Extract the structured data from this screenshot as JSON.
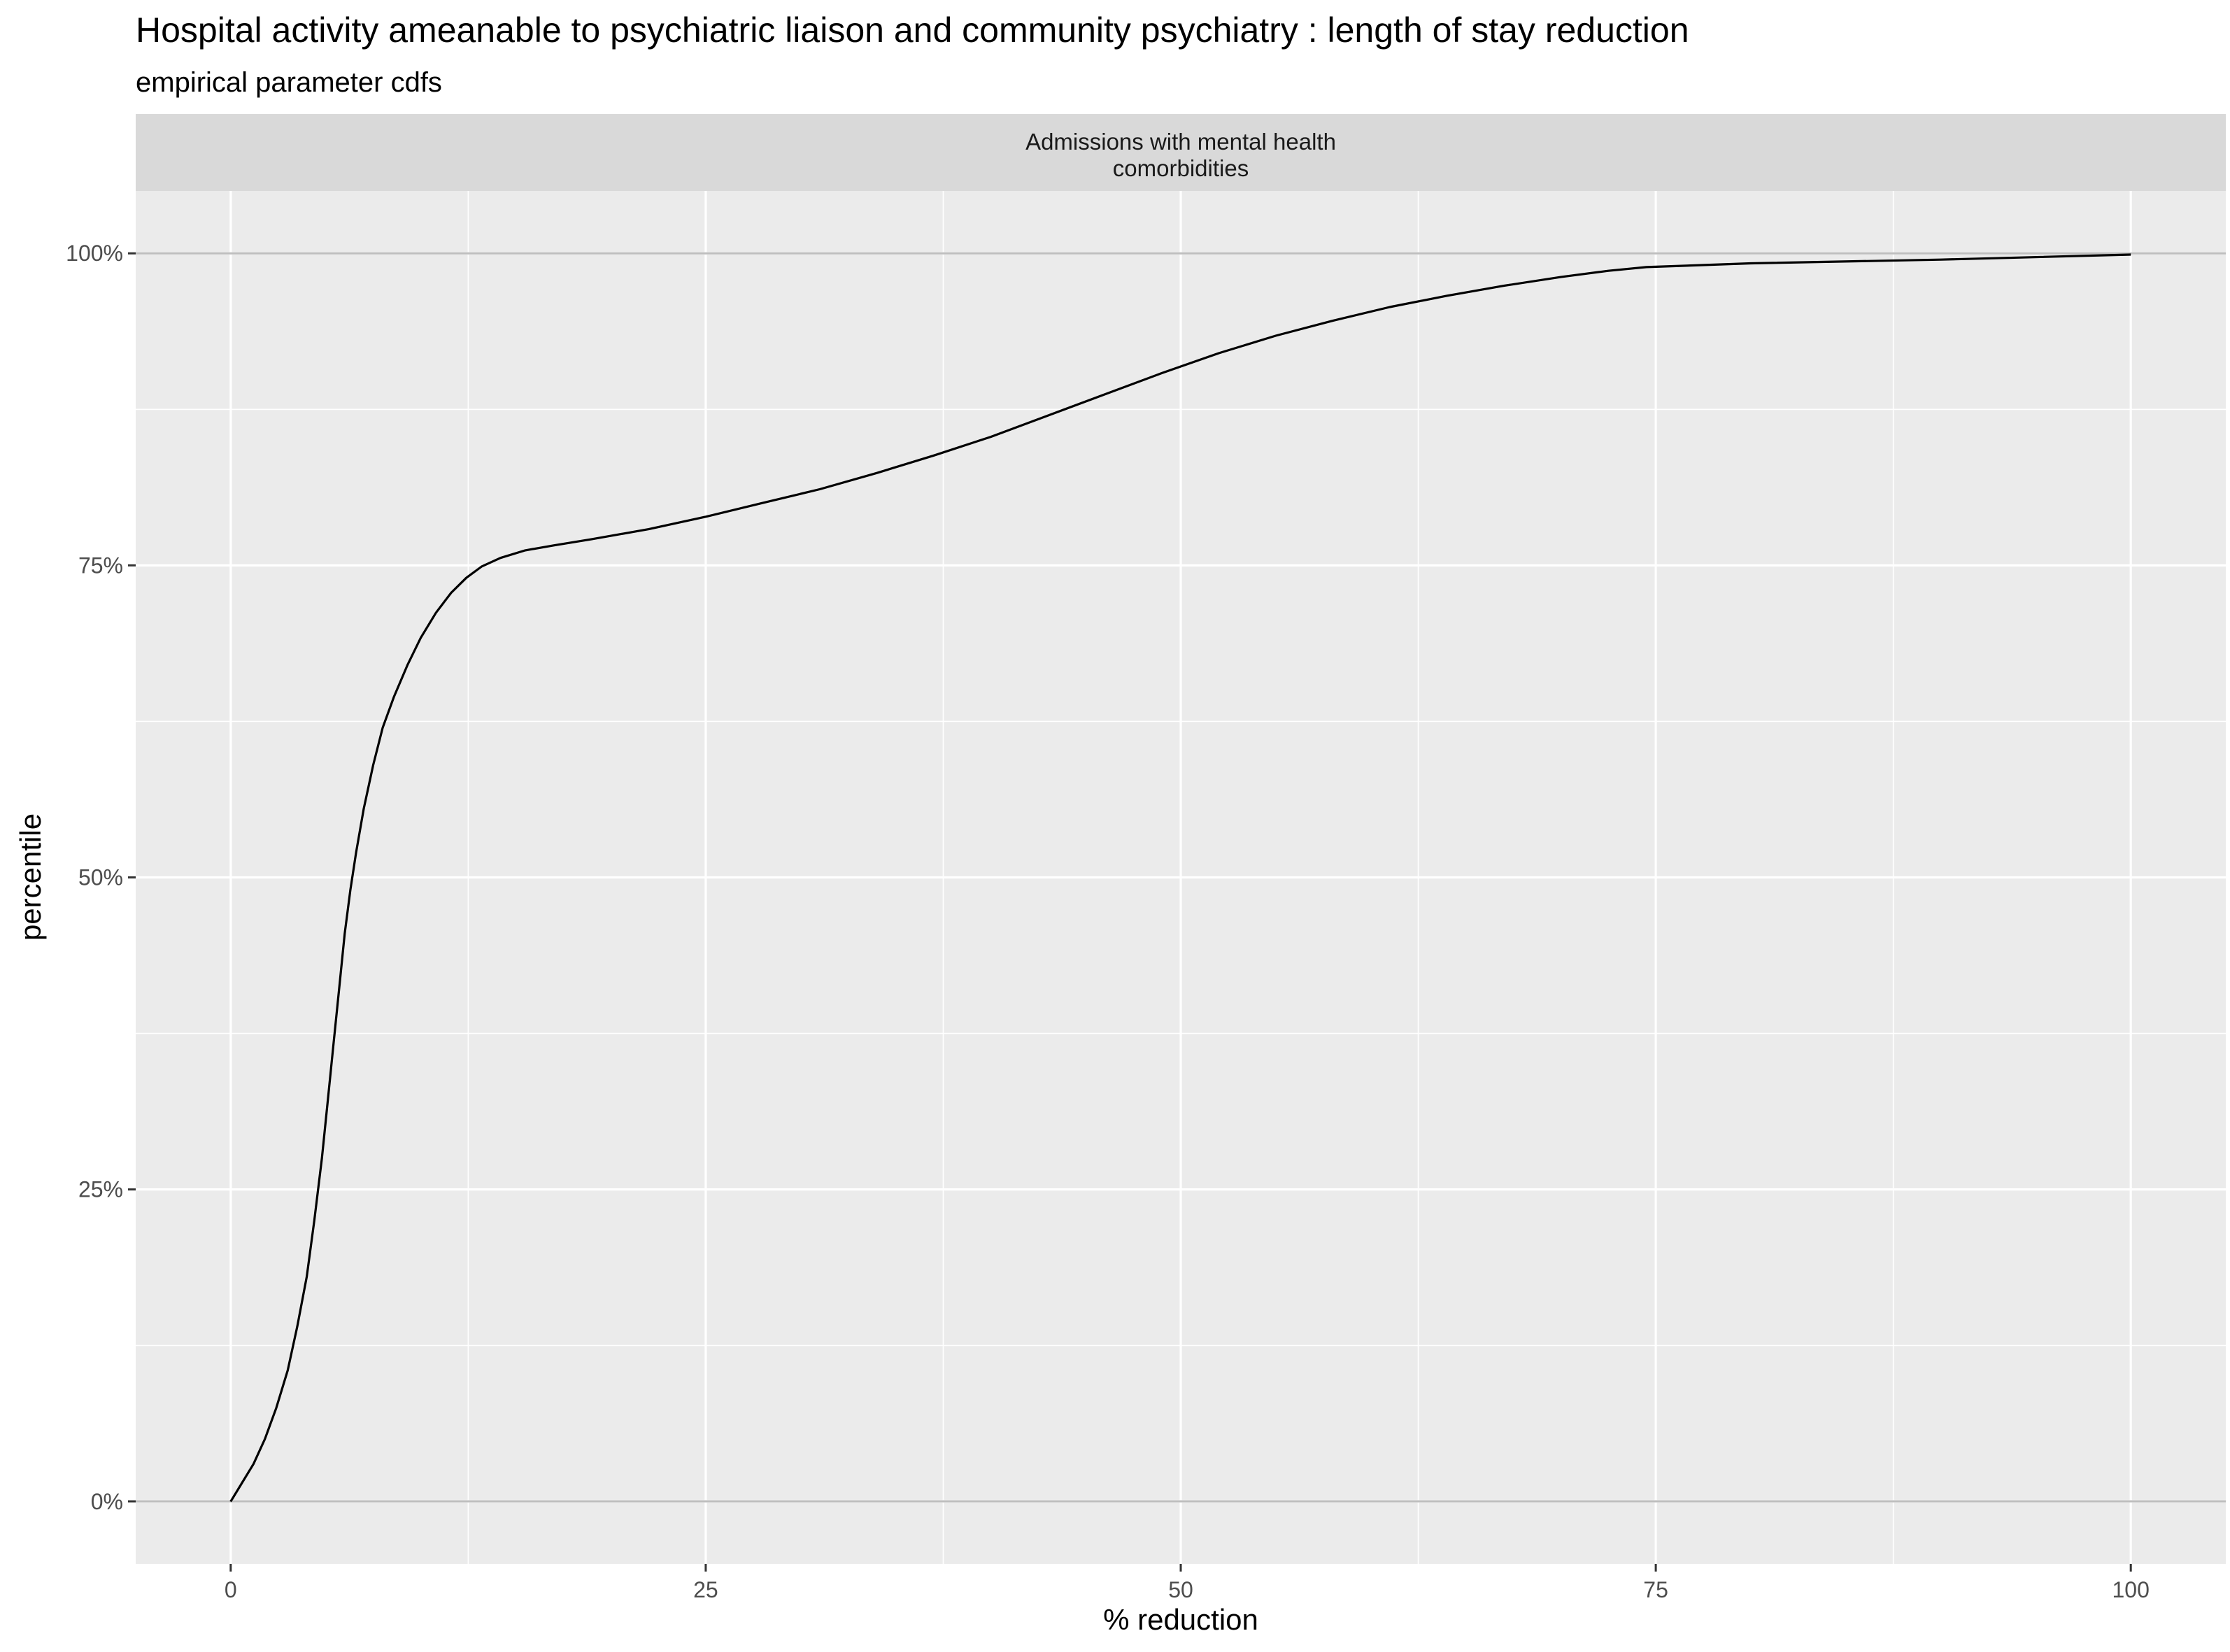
{
  "chart_data": {
    "type": "line",
    "title": "Hospital activity ameanable to psychiatric liaison and community psychiatry : length of stay reduction",
    "subtitle": "empirical parameter cdfs",
    "facet_label_lines": [
      "Admissions with mental health",
      "comorbidities"
    ],
    "xlabel": "% reduction",
    "ylabel": "percentile",
    "xlim": [
      -5,
      105
    ],
    "ylim": [
      -0.05,
      1.05
    ],
    "x_ticks": [
      0,
      25,
      50,
      75,
      100
    ],
    "x_tick_labels": [
      "0",
      "25",
      "50",
      "75",
      "100"
    ],
    "y_ticks": [
      0,
      0.25,
      0.5,
      0.75,
      1.0
    ],
    "y_tick_labels": [
      "0%",
      "25%",
      "50%",
      "75%",
      "100%"
    ],
    "reference_lines_y": [
      0,
      1
    ],
    "grid": true,
    "line_color": "#000000",
    "panel_color": "#EBEBEB",
    "strip_color": "#D9D9D9",
    "series": [
      {
        "x": [
          0,
          0.6,
          1.2,
          1.8,
          2.4,
          3.0,
          3.5,
          4.0,
          4.4,
          4.8,
          5.1,
          5.4,
          5.7,
          6.0,
          6.3,
          6.6,
          7.0,
          7.5,
          8.0,
          8.6,
          9.3,
          10.0,
          10.8,
          11.6,
          12.4,
          13.2,
          14.2,
          15.5,
          17.0,
          19.0,
          22.0,
          25.0,
          28.0,
          31.0,
          34.0,
          37.0,
          40.0,
          43.0,
          46.0,
          49.0,
          52.0,
          55.0,
          58.0,
          61.0,
          64.0,
          67.0,
          70.0,
          72.5,
          74.5,
          80.0,
          90.0,
          100.0
        ],
        "y": [
          0,
          0.015,
          0.03,
          0.05,
          0.075,
          0.105,
          0.14,
          0.18,
          0.225,
          0.275,
          0.32,
          0.365,
          0.41,
          0.455,
          0.49,
          0.52,
          0.555,
          0.59,
          0.62,
          0.645,
          0.67,
          0.692,
          0.712,
          0.728,
          0.74,
          0.749,
          0.756,
          0.762,
          0.766,
          0.771,
          0.779,
          0.789,
          0.8,
          0.811,
          0.824,
          0.838,
          0.853,
          0.87,
          0.887,
          0.904,
          0.92,
          0.934,
          0.946,
          0.957,
          0.966,
          0.974,
          0.981,
          0.986,
          0.989,
          0.992,
          0.995,
          0.999
        ]
      }
    ]
  }
}
